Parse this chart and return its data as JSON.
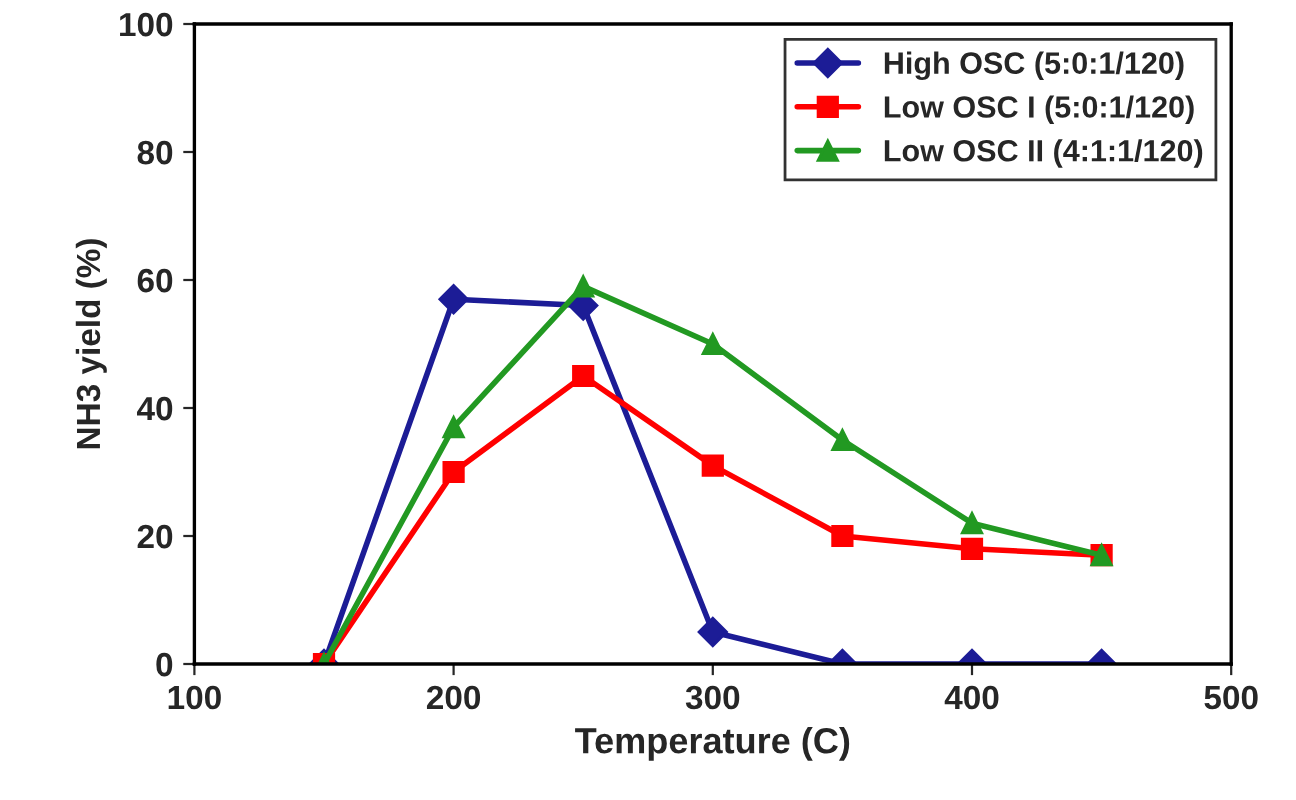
{
  "chart_data": {
    "type": "line",
    "xlabel": "Temperature (C)",
    "ylabel": "NH3 yield (%)",
    "x": [
      150,
      200,
      250,
      300,
      350,
      400,
      450
    ],
    "series": [
      {
        "name": "High OSC (5:0:1/120)",
        "color": "#1c1c96",
        "marker": "diamond",
        "values": [
          0,
          57,
          56,
          5,
          0,
          0,
          0
        ]
      },
      {
        "name": "Low OSC I (5:0:1/120)",
        "color": "#ff0000",
        "marker": "square",
        "values": [
          0,
          30,
          45,
          31,
          20,
          18,
          17
        ]
      },
      {
        "name": "Low OSC II (4:1:1/120)",
        "color": "#229922",
        "marker": "triangle",
        "values": [
          0,
          37,
          59,
          50,
          35,
          22,
          17
        ]
      }
    ],
    "xlim": [
      100,
      500
    ],
    "xticks": [
      100,
      200,
      300,
      400,
      500
    ],
    "ylim": [
      0,
      100
    ],
    "yticks": [
      0,
      20,
      40,
      60,
      80,
      100
    ],
    "grid": false,
    "legend": "top right",
    "line_style": "solid"
  }
}
